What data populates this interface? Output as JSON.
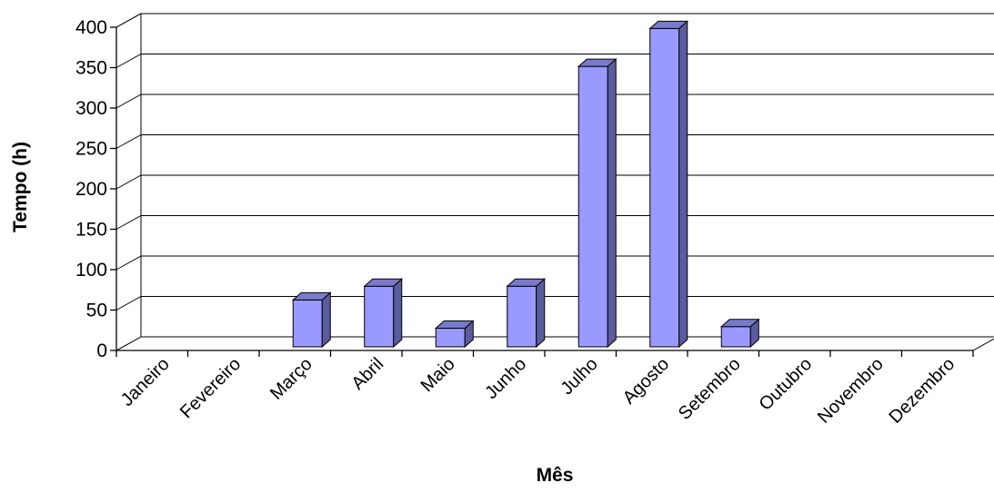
{
  "chart_data": {
    "type": "bar",
    "title": "",
    "xlabel": "Mês",
    "ylabel": "Tempo (h)",
    "ylim": [
      0,
      400
    ],
    "yticks": [
      0,
      50,
      100,
      150,
      200,
      250,
      300,
      350,
      400
    ],
    "categories": [
      "Janeiro",
      "Fevereiro",
      "Março",
      "Abril",
      "Maio",
      "Junho",
      "Julho",
      "Agosto",
      "Setembro",
      "Outubro",
      "Novembro",
      "Dezembro"
    ],
    "values": [
      0,
      0,
      58,
      75,
      23,
      75,
      347,
      394,
      25,
      0,
      0,
      0
    ],
    "grid": true,
    "legend": "none",
    "bar_color": "#9999ff",
    "bar_side_color": "#5b5b9f",
    "bar_top_color": "#7a7acc"
  }
}
